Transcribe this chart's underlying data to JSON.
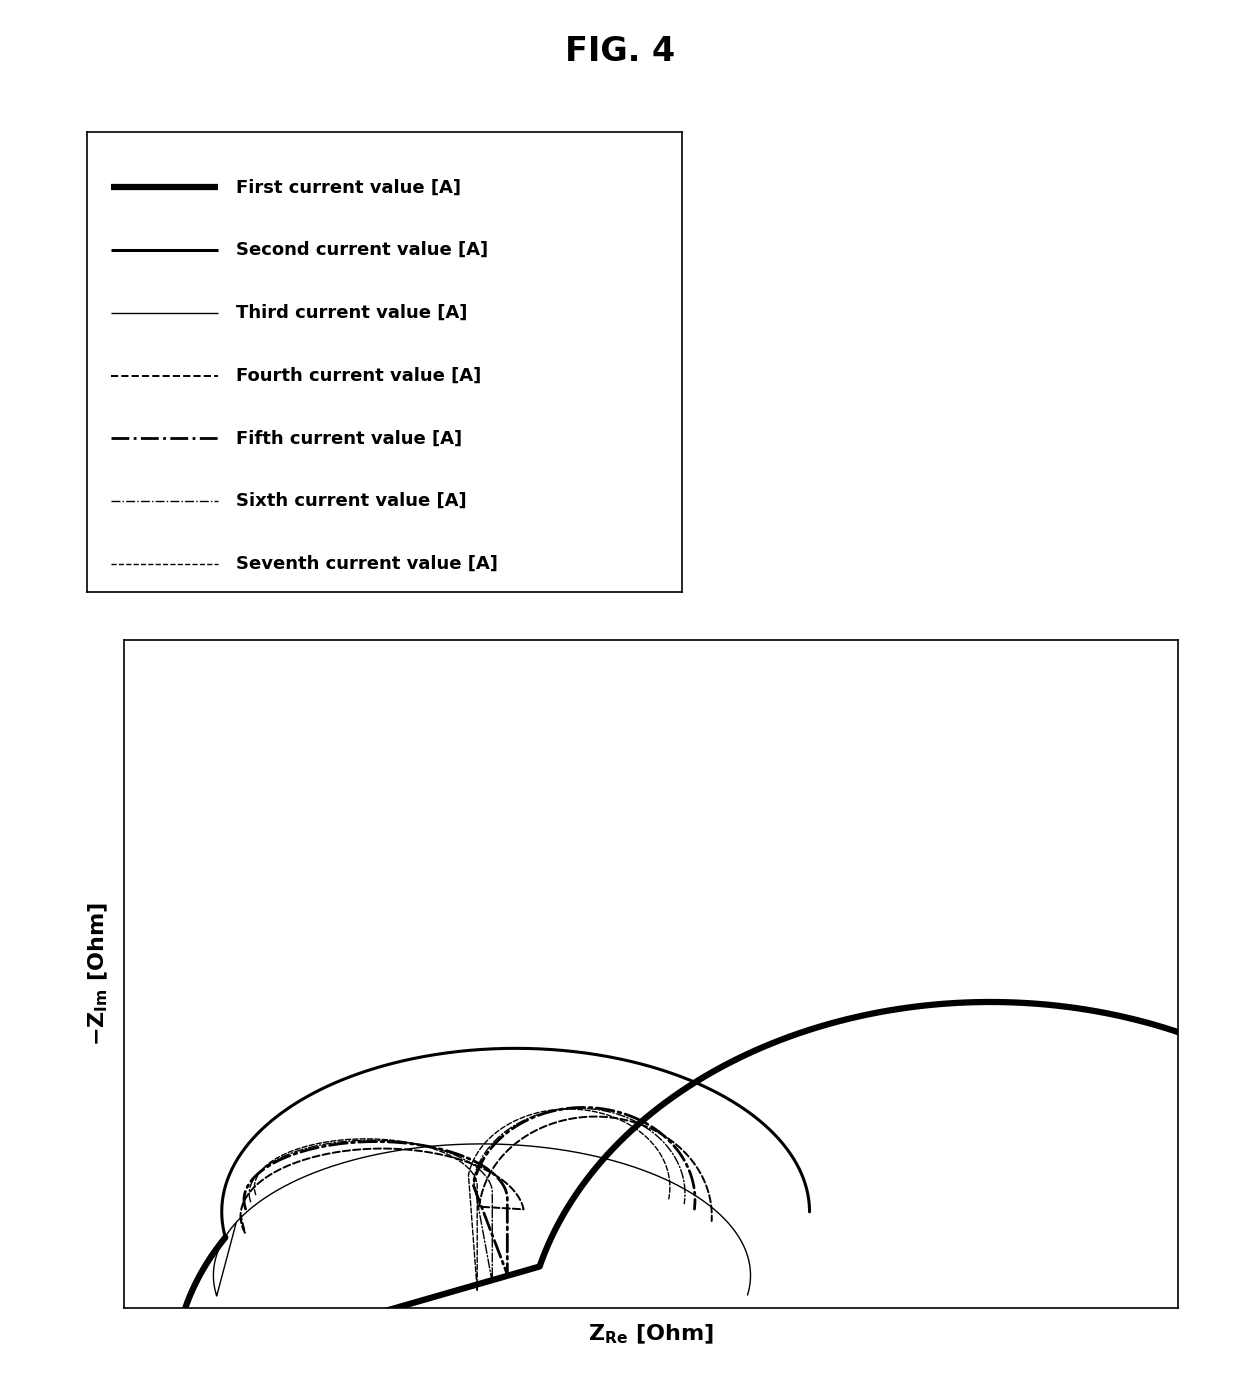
{
  "title": "FIG. 4",
  "xlabel": "Z_{Re} [Ohm]",
  "ylabel": "-Z_{Im} [Ohm]",
  "background_color": "#ffffff",
  "legend_entries": [
    "First current value [A]",
    "Second current value [A]",
    "Third current value [A]",
    "Fourth current value [A]",
    "Fifth current value [A]",
    "Sixth current value [A]",
    "Seventh current value [A]"
  ],
  "line_styles": [
    {
      "lw": 4.5,
      "ls": "-",
      "color": "#000000"
    },
    {
      "lw": 2.2,
      "ls": "-",
      "color": "#000000"
    },
    {
      "lw": 1.0,
      "ls": "-",
      "color": "#000000"
    },
    {
      "lw": 1.4,
      "ls": "--",
      "color": "#000000"
    },
    {
      "lw": 2.0,
      "ls": "-.",
      "color": "#000000"
    },
    {
      "lw": 1.0,
      "ls": "-.",
      "color": "#000000"
    },
    {
      "lw": 1.0,
      "ls": "--",
      "color": "#000000"
    }
  ],
  "fig_width": 12.4,
  "fig_height": 13.92,
  "dpi": 100
}
